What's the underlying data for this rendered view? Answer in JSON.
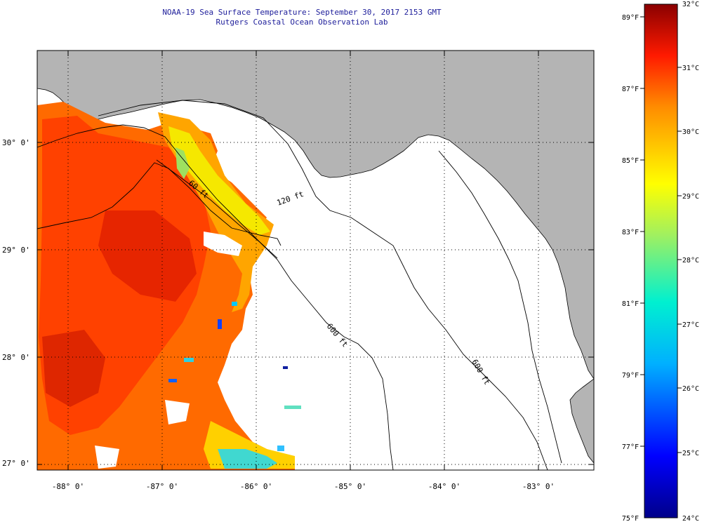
{
  "title_line1": "NOAA-19 Sea Surface Temperature:  September 30, 2017 2153 GMT",
  "title_line2": "Rutgers Coastal Ocean Observation Lab",
  "lat_labels": [
    "30° 0'",
    "29° 0'",
    "28° 0'",
    "27° 0'"
  ],
  "lon_labels": [
    "-88° 0'",
    "-87° 0'",
    "-86° 0'",
    "-85° 0'",
    "-84° 0'",
    "-83° 0'"
  ],
  "contour_labels": [
    "60 ft",
    "120 ft",
    "600 ft",
    "600 ft"
  ],
  "colorbar": {
    "fahrenheit_labels": [
      "89°F",
      "87°F",
      "85°F",
      "83°F",
      "81°F",
      "79°F",
      "77°F",
      "75°F"
    ],
    "celsius_labels": [
      "32°C",
      "31°C",
      "30°C",
      "29°C",
      "28°C",
      "27°C",
      "26°C",
      "25°C",
      "24°C"
    ]
  },
  "colors": {
    "land": "#b4b4b4",
    "ocean": "#ffffff",
    "title": "#1d1d9a",
    "grid": "#000000"
  }
}
